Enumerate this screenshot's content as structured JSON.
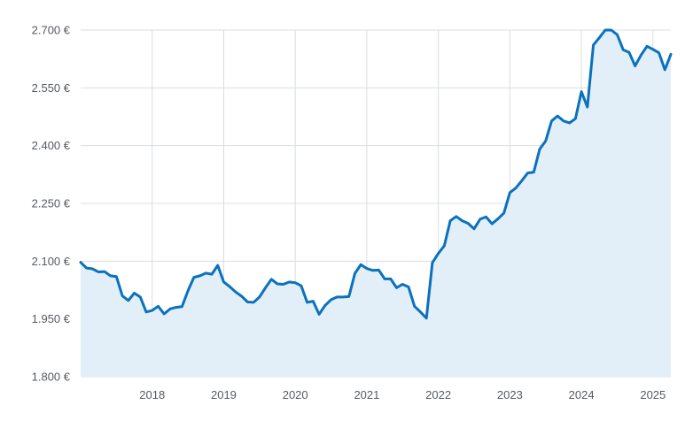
{
  "chart_data": {
    "type": "area",
    "title": "",
    "xlabel": "",
    "ylabel": "",
    "ylim": [
      1800,
      2700
    ],
    "xlim": [
      "2017-01",
      "2025-04"
    ],
    "y_ticks": [
      {
        "value": 1800,
        "label": "1.800 €"
      },
      {
        "value": 1950,
        "label": "1.950 €"
      },
      {
        "value": 2100,
        "label": "2.100 €"
      },
      {
        "value": 2250,
        "label": "2.250 €"
      },
      {
        "value": 2400,
        "label": "2.400 €"
      },
      {
        "value": 2550,
        "label": "2.550 €"
      },
      {
        "value": 2700,
        "label": "2.700 €"
      }
    ],
    "x_ticks": [
      {
        "value": "2018-01",
        "label": "2018"
      },
      {
        "value": "2019-01",
        "label": "2019"
      },
      {
        "value": "2020-01",
        "label": "2020"
      },
      {
        "value": "2021-01",
        "label": "2021"
      },
      {
        "value": "2022-01",
        "label": "2022"
      },
      {
        "value": "2023-01",
        "label": "2023"
      },
      {
        "value": "2024-01",
        "label": "2024"
      },
      {
        "value": "2025-01",
        "label": "2025"
      }
    ],
    "grid": true,
    "legend": "none",
    "colors": {
      "line": "#0a72bd",
      "fill": "#e2eff8",
      "grid": "#d9dde2"
    },
    "x": [
      "2017-01",
      "2017-02",
      "2017-03",
      "2017-04",
      "2017-05",
      "2017-06",
      "2017-07",
      "2017-08",
      "2017-09",
      "2017-10",
      "2017-11",
      "2017-12",
      "2018-01",
      "2018-02",
      "2018-03",
      "2018-04",
      "2018-05",
      "2018-06",
      "2018-07",
      "2018-08",
      "2018-09",
      "2018-10",
      "2018-11",
      "2018-12",
      "2019-01",
      "2019-02",
      "2019-03",
      "2019-04",
      "2019-05",
      "2019-06",
      "2019-07",
      "2019-08",
      "2019-09",
      "2019-10",
      "2019-11",
      "2019-12",
      "2020-01",
      "2020-02",
      "2020-03",
      "2020-04",
      "2020-05",
      "2020-06",
      "2020-07",
      "2020-08",
      "2020-09",
      "2020-10",
      "2020-11",
      "2020-12",
      "2021-01",
      "2021-02",
      "2021-03",
      "2021-04",
      "2021-05",
      "2021-06",
      "2021-07",
      "2021-08",
      "2021-09",
      "2021-10",
      "2021-11",
      "2021-12",
      "2022-01",
      "2022-02",
      "2022-03",
      "2022-04",
      "2022-05",
      "2022-06",
      "2022-07",
      "2022-08",
      "2022-09",
      "2022-10",
      "2022-11",
      "2022-12",
      "2023-01",
      "2023-02",
      "2023-03",
      "2023-04",
      "2023-05",
      "2023-06",
      "2023-07",
      "2023-08",
      "2023-09",
      "2023-10",
      "2023-11",
      "2023-12",
      "2024-01",
      "2024-02",
      "2024-03",
      "2024-04",
      "2024-05",
      "2024-06",
      "2024-07",
      "2024-08",
      "2024-09",
      "2024-10",
      "2024-11",
      "2024-12",
      "2025-01",
      "2025-02",
      "2025-03",
      "2025-04"
    ],
    "series": [
      {
        "values": [
          2097,
          2082,
          2080,
          2072,
          2073,
          2062,
          2060,
          2010,
          1998,
          2017,
          2007,
          1968,
          1972,
          1983,
          1963,
          1976,
          1980,
          1982,
          2023,
          2058,
          2062,
          2069,
          2066,
          2089,
          2046,
          2034,
          2020,
          2009,
          1994,
          1993,
          2007,
          2031,
          2053,
          2041,
          2040,
          2046,
          2044,
          2036,
          1993,
          1996,
          1962,
          1985,
          2000,
          2007,
          2007,
          2008,
          2068,
          2091,
          2081,
          2076,
          2077,
          2054,
          2054,
          2031,
          2040,
          2033,
          1983,
          1968,
          1952,
          2096,
          2120,
          2140,
          2205,
          2216,
          2205,
          2198,
          2184,
          2209,
          2215,
          2197,
          2210,
          2225,
          2278,
          2290,
          2309,
          2329,
          2331,
          2391,
          2412,
          2464,
          2477,
          2464,
          2459,
          2470,
          2540,
          2500,
          2661,
          2680,
          2700,
          2700,
          2688,
          2649,
          2642,
          2607,
          2635,
          2658,
          2650,
          2641,
          2597,
          2637
        ]
      }
    ]
  }
}
